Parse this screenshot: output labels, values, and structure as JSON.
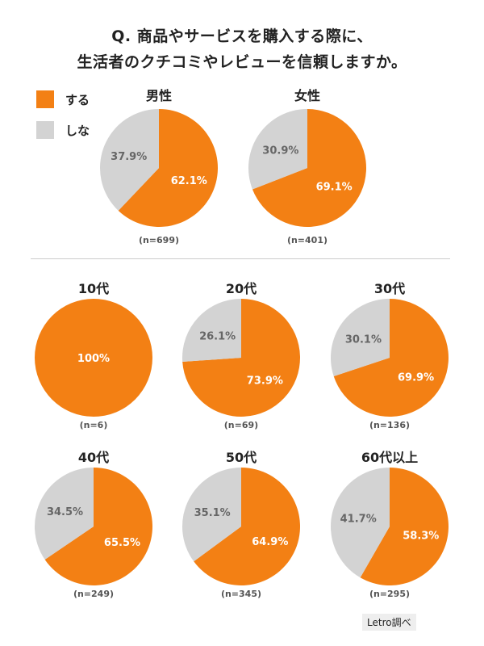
{
  "title_line1": "Q. 商品やサービスを購入する際に、",
  "title_line2": "生活者のクチコミやレビューを信頼しますか。",
  "legend": [
    {
      "label": "する",
      "color": "#F38014"
    },
    {
      "label": "しな",
      "color": "#D3D3D3"
    }
  ],
  "colors": {
    "yes": "#F38014",
    "no": "#D3D3D3"
  },
  "credit": "Letro調べ",
  "chart_data": [
    {
      "type": "pie",
      "title": "男性",
      "n": "(n=699)",
      "categories": [
        "する",
        "しな"
      ],
      "values": [
        62.1,
        37.9
      ],
      "labels": [
        "62.1%",
        "37.9%"
      ]
    },
    {
      "type": "pie",
      "title": "女性",
      "n": "(n=401)",
      "categories": [
        "する",
        "しな"
      ],
      "values": [
        69.1,
        30.9
      ],
      "labels": [
        "69.1%",
        "30.9%"
      ]
    },
    {
      "type": "pie",
      "title": "10代",
      "n": "(n=6)",
      "categories": [
        "する",
        "しな"
      ],
      "values": [
        100,
        0
      ],
      "labels": [
        "100%",
        ""
      ]
    },
    {
      "type": "pie",
      "title": "20代",
      "n": "(n=69)",
      "categories": [
        "する",
        "しな"
      ],
      "values": [
        73.9,
        26.1
      ],
      "labels": [
        "73.9%",
        "26.1%"
      ]
    },
    {
      "type": "pie",
      "title": "30代",
      "n": "(n=136)",
      "categories": [
        "する",
        "しな"
      ],
      "values": [
        69.9,
        30.1
      ],
      "labels": [
        "69.9%",
        "30.1%"
      ]
    },
    {
      "type": "pie",
      "title": "40代",
      "n": "(n=249)",
      "categories": [
        "する",
        "しな"
      ],
      "values": [
        65.5,
        34.5
      ],
      "labels": [
        "65.5%",
        "34.5%"
      ]
    },
    {
      "type": "pie",
      "title": "50代",
      "n": "(n=345)",
      "categories": [
        "する",
        "しな"
      ],
      "values": [
        64.9,
        35.1
      ],
      "labels": [
        "64.9%",
        "35.1%"
      ]
    },
    {
      "type": "pie",
      "title": "60代以上",
      "n": "(n=295)",
      "categories": [
        "する",
        "しな"
      ],
      "values": [
        58.3,
        41.7
      ],
      "labels": [
        "58.3%",
        "41.7%"
      ]
    }
  ]
}
